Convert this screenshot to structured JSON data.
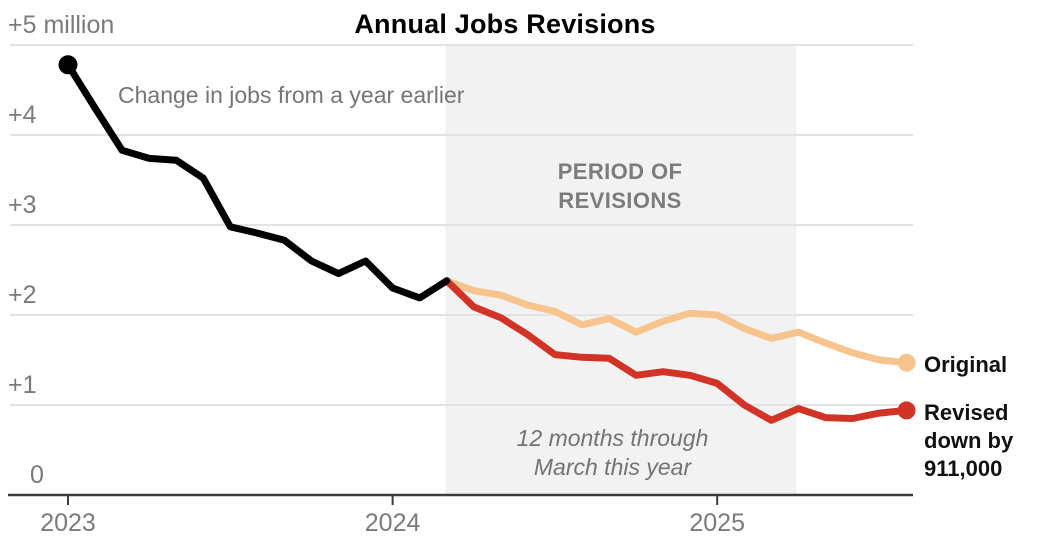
{
  "chart_data": {
    "type": "line",
    "title": "Annual Jobs Revisions",
    "subtitle": "Change in jobs from a year earlier",
    "unit": "millions of jobs, change from a year earlier",
    "ylim": [
      0,
      5.2
    ],
    "grid": true,
    "axis_color": "#3a3a3a",
    "gridline_color": "#e3e3e3",
    "y_ticks": [
      {
        "value": 5,
        "label": "+5 million"
      },
      {
        "value": 4,
        "label": "+4"
      },
      {
        "value": 3,
        "label": "+3"
      },
      {
        "value": 2,
        "label": "+2"
      },
      {
        "value": 1,
        "label": "+1"
      },
      {
        "value": 0,
        "label": "0"
      }
    ],
    "x_ticks": [
      {
        "label": "2023",
        "month_index": 0
      },
      {
        "label": "2024",
        "month_index": 12
      },
      {
        "label": "2025",
        "month_index": 24
      }
    ],
    "shaded_region": {
      "label_lines": [
        "PERIOD OF",
        "REVISIONS"
      ],
      "start_month_index": 14,
      "end_month_index": 27,
      "start_month": "2024-03",
      "end_month": "2025-04",
      "color": "#f2f2f2"
    },
    "annotation_lines": [
      "12 months through",
      "March this year"
    ],
    "series": [
      {
        "name": "Jobs change (pre-revision period)",
        "color": "#000000",
        "start_month_index": 0,
        "start_month": "2023-01",
        "start_dot": true,
        "end_dot": false,
        "values": [
          4.78,
          4.3,
          3.83,
          3.74,
          3.72,
          3.52,
          2.98,
          2.91,
          2.83,
          2.6,
          2.46,
          2.6,
          2.3,
          2.19,
          2.38
        ]
      },
      {
        "name": "Original",
        "label": "Original",
        "color": "#f7c48e",
        "start_month_index": 14,
        "start_month": "2024-03",
        "start_dot": false,
        "end_dot": true,
        "values": [
          2.38,
          2.27,
          2.22,
          2.11,
          2.04,
          1.89,
          1.96,
          1.81,
          1.93,
          2.02,
          2.0,
          1.85,
          1.74,
          1.81,
          1.69,
          1.58,
          1.5,
          1.47
        ]
      },
      {
        "name": "Revised",
        "label": "Revised down by 911,000",
        "label_lines": [
          "Revised",
          "down by",
          "911,000"
        ],
        "color": "#d13426",
        "start_month_index": 14,
        "start_month": "2024-03",
        "start_dot": false,
        "end_dot": true,
        "values": [
          2.38,
          2.09,
          1.97,
          1.78,
          1.56,
          1.53,
          1.52,
          1.33,
          1.37,
          1.33,
          1.24,
          1.0,
          0.83,
          0.96,
          0.86,
          0.85,
          0.91,
          0.94
        ]
      }
    ]
  }
}
